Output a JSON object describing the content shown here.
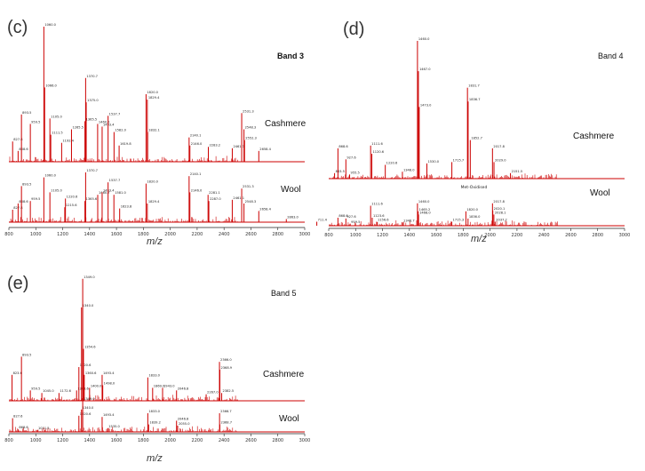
{
  "axis_label": "m/z",
  "colors": {
    "spectrum": "#cc0000",
    "axis": "#222222",
    "text": "#333333"
  },
  "chart_data": [
    {
      "type": "line",
      "panel": "(c)",
      "band": "Band 3",
      "x_ticks": [
        800,
        1000,
        1200,
        1400,
        1600,
        1800,
        2000,
        2200,
        2400,
        2600,
        2800,
        3000
      ],
      "xlim": [
        800,
        3000
      ],
      "series": [
        {
          "name": "Cashmere",
          "peaks": [
            {
              "mz": 827.8,
              "h": 0.15,
              "label": "827.8"
            },
            {
              "mz": 868.6,
              "h": 0.08,
              "label": "868.6"
            },
            {
              "mz": 893.5,
              "h": 0.35,
              "label": "893.5"
            },
            {
              "mz": 959.5,
              "h": 0.28,
              "label": "959.5"
            },
            {
              "mz": 1060.0,
              "h": 1.0,
              "label": "1060.0"
            },
            {
              "mz": 1066.0,
              "h": 0.55,
              "label": "1066.0"
            },
            {
              "mz": 1105.0,
              "h": 0.32,
              "label": "1105.0"
            },
            {
              "mz": 1111.5,
              "h": 0.2,
              "label": "1111.5"
            },
            {
              "mz": 1192.4,
              "h": 0.14,
              "label": "1192.4"
            },
            {
              "mz": 1265.5,
              "h": 0.24,
              "label": "1265.5"
            },
            {
              "mz": 1365.5,
              "h": 0.3,
              "label": "1365.5"
            },
            {
              "mz": 1370.7,
              "h": 0.62,
              "label": "1370.7"
            },
            {
              "mz": 1375.0,
              "h": 0.44,
              "label": "1375.0"
            },
            {
              "mz": 1460.0,
              "h": 0.28,
              "label": "1460.0"
            },
            {
              "mz": 1493.4,
              "h": 0.26,
              "label": "1493.4"
            },
            {
              "mz": 1537.7,
              "h": 0.34,
              "label": "1537.7"
            },
            {
              "mz": 1582.0,
              "h": 0.22,
              "label": "1582.0"
            },
            {
              "mz": 1619.8,
              "h": 0.12,
              "label": "1619.8"
            },
            {
              "mz": 1820.0,
              "h": 0.5,
              "label": "1820.0"
            },
            {
              "mz": 1829.4,
              "h": 0.46,
              "label": "1829.4"
            },
            {
              "mz": 1832.1,
              "h": 0.22,
              "label": "1832.1"
            },
            {
              "mz": 2140.1,
              "h": 0.18,
              "label": "2140.1"
            },
            {
              "mz": 2146.0,
              "h": 0.12,
              "label": "2146.0"
            },
            {
              "mz": 2283.2,
              "h": 0.11,
              "label": "2283.2"
            },
            {
              "mz": 2461.3,
              "h": 0.1,
              "label": "2461.3"
            },
            {
              "mz": 2531.3,
              "h": 0.36,
              "label": "2531.3"
            },
            {
              "mz": 2548.3,
              "h": 0.24,
              "label": "2548.3"
            },
            {
              "mz": 2552.3,
              "h": 0.16,
              "label": "2552.3"
            },
            {
              "mz": 2658.4,
              "h": 0.08,
              "label": "2658.4"
            }
          ]
        },
        {
          "name": "Wool",
          "peaks": [
            {
              "mz": 827.8,
              "h": 0.2,
              "label": "827.8"
            },
            {
              "mz": 868.6,
              "h": 0.3,
              "label": "868.6"
            },
            {
              "mz": 893.5,
              "h": 0.58,
              "label": "893.5"
            },
            {
              "mz": 959.5,
              "h": 0.34,
              "label": "959.5"
            },
            {
              "mz": 1060.0,
              "h": 0.72,
              "label": "1060.0"
            },
            {
              "mz": 1105.0,
              "h": 0.48,
              "label": "1105.0"
            },
            {
              "mz": 1220.6,
              "h": 0.38,
              "label": "1220.6"
            },
            {
              "mz": 1215.6,
              "h": 0.24,
              "label": "1215.6"
            },
            {
              "mz": 1370.7,
              "h": 0.8,
              "label": "1370.7"
            },
            {
              "mz": 1365.6,
              "h": 0.34,
              "label": "1365.6"
            },
            {
              "mz": 1460.7,
              "h": 0.44,
              "label": "1460.7"
            },
            {
              "mz": 1493.4,
              "h": 0.48,
              "label": "1493.4"
            },
            {
              "mz": 1537.7,
              "h": 0.64,
              "label": "1537.7"
            },
            {
              "mz": 1581.0,
              "h": 0.44,
              "label": "1581.0"
            },
            {
              "mz": 1623.8,
              "h": 0.22,
              "label": "1623.8"
            },
            {
              "mz": 1820.0,
              "h": 0.62,
              "label": "1820.0"
            },
            {
              "mz": 1829.4,
              "h": 0.3,
              "label": "1829.4"
            },
            {
              "mz": 2140.1,
              "h": 0.74,
              "label": "2140.1"
            },
            {
              "mz": 2146.0,
              "h": 0.48,
              "label": "2146.0"
            },
            {
              "mz": 2281.1,
              "h": 0.44,
              "label": "2281.1"
            },
            {
              "mz": 2287.0,
              "h": 0.34,
              "label": "2287.0"
            },
            {
              "mz": 2461.1,
              "h": 0.36,
              "label": "2461.1"
            },
            {
              "mz": 2531.3,
              "h": 0.54,
              "label": "2531.3"
            },
            {
              "mz": 2548.3,
              "h": 0.3,
              "label": "2548.3"
            },
            {
              "mz": 2658.4,
              "h": 0.18,
              "label": "2658.4"
            },
            {
              "mz": 2863.0,
              "h": 0.05,
              "label": "2863.0"
            }
          ]
        }
      ]
    },
    {
      "type": "line",
      "panel": "(d)",
      "band": "Band 4",
      "x_ticks": [
        800,
        1000,
        1200,
        1400,
        1600,
        1800,
        2000,
        2200,
        2400,
        2600,
        2800,
        3000
      ],
      "xlim": [
        800,
        3000
      ],
      "annotation": "Met-Oxidised",
      "series": [
        {
          "name": "Cashmere",
          "peaks": [
            {
              "mz": 843.5,
              "h": 0.04,
              "label": "843.5"
            },
            {
              "mz": 868.6,
              "h": 0.22,
              "label": "868.6"
            },
            {
              "mz": 927.6,
              "h": 0.14,
              "label": "927.6"
            },
            {
              "mz": 955.5,
              "h": 0.03,
              "label": "955.5"
            },
            {
              "mz": 1111.6,
              "h": 0.24,
              "label": "1111.6"
            },
            {
              "mz": 1120.6,
              "h": 0.18,
              "label": "1120.6"
            },
            {
              "mz": 1220.6,
              "h": 0.1,
              "label": "1220.6"
            },
            {
              "mz": 1348.0,
              "h": 0.05,
              "label": "1348.0"
            },
            {
              "mz": 1460.0,
              "h": 1.0,
              "label": "1460.0"
            },
            {
              "mz": 1467.0,
              "h": 0.78,
              "label": "1467.0"
            },
            {
              "mz": 1473.0,
              "h": 0.52,
              "label": "1473.0"
            },
            {
              "mz": 1530.0,
              "h": 0.11,
              "label": "1530.0"
            },
            {
              "mz": 1715.7,
              "h": 0.12,
              "label": "1715.7"
            },
            {
              "mz": 1831.7,
              "h": 0.66,
              "label": "1831.7"
            },
            {
              "mz": 1836.7,
              "h": 0.56,
              "label": "1836.7"
            },
            {
              "mz": 1852.7,
              "h": 0.28,
              "label": "1852.7"
            },
            {
              "mz": 2017.8,
              "h": 0.22,
              "label": "2017.8"
            },
            {
              "mz": 2029.0,
              "h": 0.12,
              "label": "2029.0"
            },
            {
              "mz": 2151.5,
              "h": 0.04,
              "label": "2151.5"
            }
          ]
        },
        {
          "name": "Wool",
          "peaks": [
            {
              "mz": 711.4,
              "h": 0.1,
              "label": "711.4"
            },
            {
              "mz": 868.6,
              "h": 0.2,
              "label": "868.6"
            },
            {
              "mz": 927.6,
              "h": 0.18,
              "label": "927.6"
            },
            {
              "mz": 959.5,
              "h": 0.05,
              "label": "959.5"
            },
            {
              "mz": 1111.6,
              "h": 0.5,
              "label": "1111.6"
            },
            {
              "mz": 1123.6,
              "h": 0.2,
              "label": "1123.6"
            },
            {
              "mz": 1156.6,
              "h": 0.1,
              "label": "1156.6"
            },
            {
              "mz": 1348.7,
              "h": 0.08,
              "label": "1348.7"
            },
            {
              "mz": 1460.0,
              "h": 0.56,
              "label": "1460.0"
            },
            {
              "mz": 1465.2,
              "h": 0.36,
              "label": "1465.2"
            },
            {
              "mz": 1468.0,
              "h": 0.28,
              "label": "1468.0"
            },
            {
              "mz": 1715.3,
              "h": 0.1,
              "label": "1715.3"
            },
            {
              "mz": 1820.0,
              "h": 0.36,
              "label": "1820.0"
            },
            {
              "mz": 1836.0,
              "h": 0.18,
              "label": "1836.0"
            },
            {
              "mz": 2017.8,
              "h": 0.56,
              "label": "2017.8"
            },
            {
              "mz": 2020.1,
              "h": 0.38,
              "label": "2020.1"
            },
            {
              "mz": 2028.1,
              "h": 0.28,
              "label": "2028.1"
            },
            {
              "mz": 2037.2,
              "h": 0.1,
              "label": "2037.2"
            }
          ]
        }
      ]
    },
    {
      "type": "line",
      "panel": "(e)",
      "band": "Band 5",
      "x_ticks": [
        800,
        1000,
        1200,
        1400,
        1600,
        1800,
        2000,
        2200,
        2400,
        2600,
        2800,
        3000
      ],
      "xlim": [
        800,
        3000
      ],
      "series": [
        {
          "name": "Cashmere",
          "peaks": [
            {
              "mz": 823.6,
              "h": 0.2,
              "label": "823.6"
            },
            {
              "mz": 893.5,
              "h": 0.34,
              "label": "893.5"
            },
            {
              "mz": 959.5,
              "h": 0.08,
              "label": "959.5"
            },
            {
              "mz": 1045.0,
              "h": 0.06,
              "label": "1045.0"
            },
            {
              "mz": 1172.6,
              "h": 0.06,
              "label": "1172.6"
            },
            {
              "mz": 1303.6,
              "h": 0.08,
              "label": "1303.6"
            },
            {
              "mz": 1320.6,
              "h": 0.26,
              "label": "1320.6"
            },
            {
              "mz": 1340.0,
              "h": 0.72,
              "label": "1340.0"
            },
            {
              "mz": 1349.0,
              "h": 0.94,
              "label": "1349.0"
            },
            {
              "mz": 1354.6,
              "h": 0.4,
              "label": "1354.6"
            },
            {
              "mz": 1360.6,
              "h": 0.2,
              "label": "1360.6"
            },
            {
              "mz": 1400.0,
              "h": 0.1,
              "label": "1400.0"
            },
            {
              "mz": 1493.4,
              "h": 0.2,
              "label": "1493.4"
            },
            {
              "mz": 1498.0,
              "h": 0.12,
              "label": "1498.0"
            },
            {
              "mz": 1833.0,
              "h": 0.18,
              "label": "1833.0"
            },
            {
              "mz": 1869.0,
              "h": 0.1,
              "label": "1869.0"
            },
            {
              "mz": 1943.0,
              "h": 0.1,
              "label": "1943.0"
            },
            {
              "mz": 2046.8,
              "h": 0.08,
              "label": "2046.8"
            },
            {
              "mz": 2267.0,
              "h": 0.05,
              "label": "2267.0"
            },
            {
              "mz": 2366.0,
              "h": 0.3,
              "label": "2366.0"
            },
            {
              "mz": 2368.9,
              "h": 0.24,
              "label": "2368.9"
            },
            {
              "mz": 2382.5,
              "h": 0.06,
              "label": "2382.5"
            }
          ]
        },
        {
          "name": "Wool",
          "peaks": [
            {
              "mz": 827.6,
              "h": 0.22,
              "label": "827.6"
            },
            {
              "mz": 868.6,
              "h": 0.04,
              "label": "868.6"
            },
            {
              "mz": 1011.5,
              "h": 0.03,
              "label": "1011.5"
            },
            {
              "mz": 1320.6,
              "h": 0.26,
              "label": "1320.6"
            },
            {
              "mz": 1340.0,
              "h": 0.36,
              "label": "1340.0"
            },
            {
              "mz": 1349.0,
              "h": 0.5,
              "label": "1349.0"
            },
            {
              "mz": 1493.4,
              "h": 0.24,
              "label": "1493.4"
            },
            {
              "mz": 1535.0,
              "h": 0.06,
              "label": "1535.0"
            },
            {
              "mz": 1833.0,
              "h": 0.3,
              "label": "1833.0"
            },
            {
              "mz": 1839.2,
              "h": 0.12,
              "label": "1839.2"
            },
            {
              "mz": 2046.8,
              "h": 0.18,
              "label": "2046.8"
            },
            {
              "mz": 2055.0,
              "h": 0.1,
              "label": "2055.0"
            },
            {
              "mz": 2366.7,
              "h": 0.3,
              "label": "2366.7"
            },
            {
              "mz": 2368.7,
              "h": 0.12,
              "label": "2368.7"
            }
          ]
        }
      ]
    }
  ]
}
